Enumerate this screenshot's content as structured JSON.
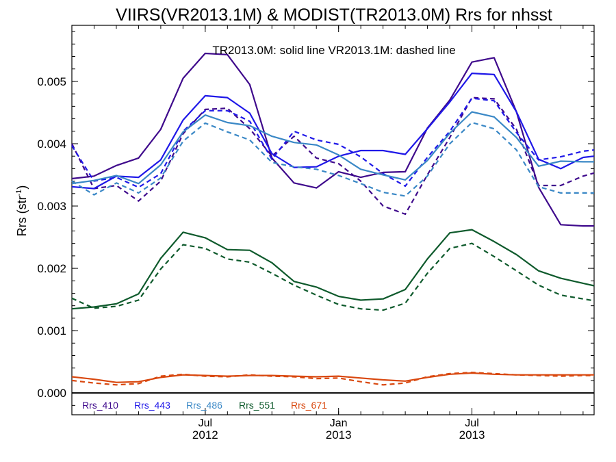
{
  "chart_data": {
    "type": "line",
    "title": "VIIRS(VR2013.1M) & MODIST(TR2013.0M)  Rrs for nhsst",
    "annotation": "TR2013.0M: solid line   VR2013.1M: dashed line",
    "ylabel_main": "Rrs (str",
    "ylabel_sup": "-1",
    "ylabel_close": ")",
    "xlabel": "",
    "ylim": [
      -0.00035,
      0.0059
    ],
    "xlim": [
      2012.0,
      2013.958
    ],
    "y_ticks": [
      {
        "value": 0.0,
        "label": "0.000"
      },
      {
        "value": 0.001,
        "label": "0.001"
      },
      {
        "value": 0.002,
        "label": "0.002"
      },
      {
        "value": 0.003,
        "label": "0.003"
      },
      {
        "value": 0.004,
        "label": "0.004"
      },
      {
        "value": 0.005,
        "label": "0.005"
      }
    ],
    "x_ticks": [
      {
        "value": 2012.5,
        "month": "Jul",
        "year": "2012"
      },
      {
        "value": 2013.0,
        "month": "Jan",
        "year": "2013"
      },
      {
        "value": 2013.5,
        "month": "Jul",
        "year": "2013"
      }
    ],
    "x": [
      2012.0,
      2012.083,
      2012.167,
      2012.25,
      2012.333,
      2012.417,
      2012.5,
      2012.583,
      2012.667,
      2012.75,
      2012.833,
      2012.917,
      2013.0,
      2013.083,
      2013.167,
      2013.25,
      2013.333,
      2013.417,
      2013.5,
      2013.583,
      2013.667,
      2013.75,
      2013.833,
      2013.917,
      2013.958
    ],
    "series": [
      {
        "name": "Rrs_410",
        "color": "#3f0a8c",
        "style": "solid",
        "values": [
          0.00344,
          0.00348,
          0.00365,
          0.00377,
          0.00423,
          0.00505,
          0.00545,
          0.00543,
          0.00495,
          0.00377,
          0.00337,
          0.00329,
          0.00355,
          0.00346,
          0.00354,
          0.00355,
          0.00425,
          0.0047,
          0.00531,
          0.00538,
          0.00451,
          0.0033,
          0.0027,
          0.00268,
          0.00268
        ]
      },
      {
        "name": "Rrs_410",
        "color": "#3f0a8c",
        "style": "dashed",
        "values": [
          0.004,
          0.00328,
          0.00333,
          0.00308,
          0.0034,
          0.00416,
          0.00455,
          0.00457,
          0.00424,
          0.0038,
          0.00412,
          0.00377,
          0.00368,
          0.0034,
          0.003,
          0.00287,
          0.0035,
          0.0041,
          0.00474,
          0.00472,
          0.00423,
          0.00333,
          0.00333,
          0.00348,
          0.00353
        ]
      },
      {
        "name": "Rrs_443",
        "color": "#1f18e8",
        "style": "solid",
        "values": [
          0.00331,
          0.00328,
          0.00348,
          0.00346,
          0.00374,
          0.00438,
          0.00477,
          0.00474,
          0.00449,
          0.00384,
          0.00362,
          0.00363,
          0.0038,
          0.00389,
          0.00389,
          0.00383,
          0.00424,
          0.00467,
          0.00513,
          0.00511,
          0.00451,
          0.00375,
          0.0036,
          0.00378,
          0.0038
        ]
      },
      {
        "name": "Rrs_443",
        "color": "#1f18e8",
        "style": "dashed",
        "values": [
          0.00397,
          0.0034,
          0.00346,
          0.0033,
          0.00352,
          0.0042,
          0.00453,
          0.00453,
          0.00436,
          0.00375,
          0.0042,
          0.00406,
          0.00399,
          0.00379,
          0.00352,
          0.00332,
          0.00378,
          0.0042,
          0.00473,
          0.00469,
          0.00418,
          0.00374,
          0.00379,
          0.00388,
          0.0039
        ]
      },
      {
        "name": "Rrs_486",
        "color": "#3a88c6",
        "style": "solid",
        "values": [
          0.00336,
          0.00341,
          0.00349,
          0.00336,
          0.00366,
          0.00419,
          0.00446,
          0.00434,
          0.00429,
          0.00412,
          0.00402,
          0.00398,
          0.00382,
          0.00359,
          0.0035,
          0.00342,
          0.00373,
          0.00417,
          0.00451,
          0.00443,
          0.0041,
          0.00364,
          0.00372,
          0.00371,
          0.00371
        ]
      },
      {
        "name": "Rrs_486",
        "color": "#3a88c6",
        "style": "dashed",
        "values": [
          0.0034,
          0.00318,
          0.00337,
          0.00321,
          0.00345,
          0.00404,
          0.00433,
          0.00419,
          0.00406,
          0.0037,
          0.00363,
          0.00359,
          0.00349,
          0.00336,
          0.00322,
          0.00316,
          0.00348,
          0.004,
          0.00434,
          0.00424,
          0.0039,
          0.00331,
          0.00321,
          0.00321,
          0.00321
        ]
      },
      {
        "name": "Rrs_551",
        "color": "#0e5a2c",
        "style": "solid",
        "values": [
          0.00135,
          0.00138,
          0.00143,
          0.00159,
          0.00216,
          0.00258,
          0.00249,
          0.0023,
          0.00229,
          0.00209,
          0.00179,
          0.0017,
          0.00155,
          0.00149,
          0.00151,
          0.00166,
          0.00215,
          0.00257,
          0.00262,
          0.00243,
          0.00222,
          0.00196,
          0.00184,
          0.00176,
          0.00172
        ]
      },
      {
        "name": "Rrs_551",
        "color": "#0e5a2c",
        "style": "dashed",
        "values": [
          0.00152,
          0.00136,
          0.00139,
          0.00149,
          0.00199,
          0.00238,
          0.00232,
          0.00215,
          0.0021,
          0.00192,
          0.00173,
          0.00157,
          0.00142,
          0.00135,
          0.00133,
          0.00144,
          0.00192,
          0.00232,
          0.0024,
          0.00219,
          0.00196,
          0.00173,
          0.00157,
          0.00151,
          0.00148
        ]
      },
      {
        "name": "Rrs_671",
        "color": "#d9480f",
        "style": "solid",
        "values": [
          0.00026,
          0.00022,
          0.00017,
          0.00018,
          0.00025,
          0.00029,
          0.00028,
          0.00027,
          0.00028,
          0.00028,
          0.00027,
          0.00026,
          0.00027,
          0.00024,
          0.00021,
          0.00019,
          0.00025,
          0.0003,
          0.00032,
          0.0003,
          0.00029,
          0.00029,
          0.00029,
          0.00029,
          0.00029
        ]
      },
      {
        "name": "Rrs_671",
        "color": "#d9480f",
        "style": "dashed",
        "values": [
          0.0002,
          0.00016,
          0.00013,
          0.00015,
          0.00027,
          0.0003,
          0.00027,
          0.00026,
          0.00029,
          0.00027,
          0.00026,
          0.00023,
          0.00024,
          0.00018,
          0.00013,
          0.00016,
          0.00026,
          0.00031,
          0.00033,
          0.00031,
          0.00029,
          0.00028,
          0.00027,
          0.00028,
          0.00028
        ]
      }
    ],
    "legend": [
      {
        "label": "Rrs_410",
        "color": "#3f0a8c"
      },
      {
        "label": "Rrs_443",
        "color": "#1f18e8"
      },
      {
        "label": "Rrs_486",
        "color": "#3a88c6"
      },
      {
        "label": "Rrs_551",
        "color": "#0e5a2c"
      },
      {
        "label": "Rrs_671",
        "color": "#d9480f"
      }
    ],
    "legend_position": "bottom-left",
    "zero_line": true,
    "grid": false
  }
}
